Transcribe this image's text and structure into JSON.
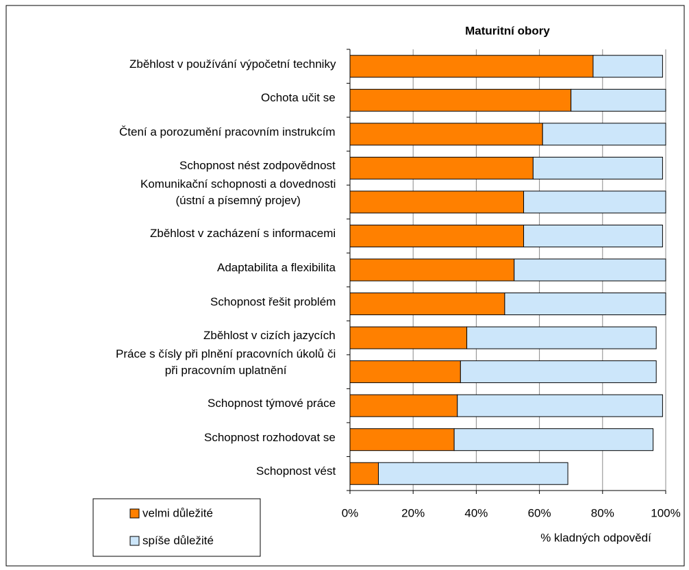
{
  "chart_data": {
    "type": "stacked_barh",
    "title": "Maturitní obory",
    "categories": [
      "Zběhlost v používání výpočetní techniky",
      "Ochota učit se",
      "Čtení a porozumění pracovním instrukcím",
      "Schopnost nést zodpovědnost",
      "Komunikační schopnosti a dovednosti\n(ústní a písemný projev)",
      "Zběhlost v zacházení s informacemi",
      "Adaptabilita a flexibilita",
      "Schopnost řešit problém",
      "Zběhlost v cizích jazycích",
      "Práce s čísly při plnění pracovních úkolů či\npři pracovním uplatnění",
      "Schopnost týmové práce",
      "Schopnost rozhodovat se",
      "Schopnost vést"
    ],
    "series": [
      {
        "name": "velmi důležité",
        "color": "#ff8000",
        "values": [
          77,
          70,
          61,
          58,
          55,
          55,
          52,
          49,
          37,
          35,
          34,
          33,
          9
        ]
      },
      {
        "name": "spíše důležité",
        "color": "#cce6fa",
        "values": [
          22,
          30,
          39,
          41,
          45,
          44,
          48,
          51,
          60,
          62,
          65,
          63,
          60
        ]
      }
    ],
    "xlim": [
      0,
      100
    ],
    "xticks": [
      {
        "value": 0,
        "label": "0%"
      },
      {
        "value": 20,
        "label": "20%"
      },
      {
        "value": 40,
        "label": "40%"
      },
      {
        "value": 60,
        "label": "60%"
      },
      {
        "value": 80,
        "label": "80%"
      },
      {
        "value": 100,
        "label": "100%"
      }
    ],
    "xlabel": "% kladných odpovědí",
    "grid": true,
    "legend": "lower left"
  }
}
